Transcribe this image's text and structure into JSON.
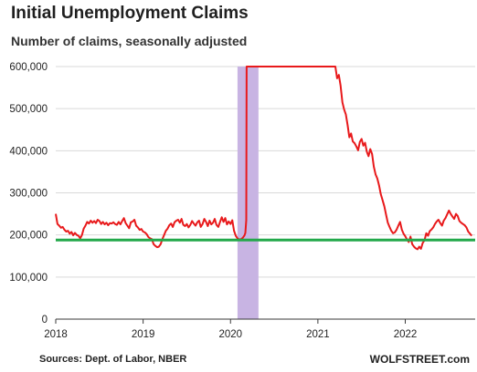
{
  "title": "Initial Unemployment Claims",
  "subtitle": "Number of claims, seasonally adjusted",
  "source": "Sources: Dept. of Labor, NBER",
  "brand": "WOLFSTREET.com",
  "colors": {
    "series": "#e8191b",
    "reference_line": "#22a84a",
    "recession": "#c8b4e3",
    "grid": "#d9d9d9",
    "axis": "#3a3a3a"
  },
  "chart_data": {
    "type": "line",
    "xlim": [
      2018.0,
      2022.8
    ],
    "ylim": [
      0,
      600000
    ],
    "grid": "horizontal",
    "yticks": [
      0,
      100000,
      200000,
      300000,
      400000,
      500000,
      600000
    ],
    "ytick_labels": [
      "0",
      "100,000",
      "200,000",
      "300,000",
      "400,000",
      "500,000",
      "600,000"
    ],
    "xticks": [
      2018,
      2019,
      2020,
      2021,
      2022
    ],
    "xtick_labels": [
      "2018",
      "2019",
      "2020",
      "2021",
      "2022"
    ],
    "recession_band": [
      2020.08,
      2020.32
    ],
    "reference_line": 188000,
    "series": [
      {
        "points": [
          [
            2018.0,
            250000
          ],
          [
            2018.02,
            226000
          ],
          [
            2018.04,
            222000
          ],
          [
            2018.06,
            217000
          ],
          [
            2018.08,
            219000
          ],
          [
            2018.1,
            212000
          ],
          [
            2018.12,
            208000
          ],
          [
            2018.14,
            210000
          ],
          [
            2018.16,
            203000
          ],
          [
            2018.18,
            207000
          ],
          [
            2018.2,
            199000
          ],
          [
            2018.22,
            205000
          ],
          [
            2018.24,
            200000
          ],
          [
            2018.26,
            198000
          ],
          [
            2018.28,
            192000
          ],
          [
            2018.3,
            200000
          ],
          [
            2018.32,
            215000
          ],
          [
            2018.34,
            222000
          ],
          [
            2018.36,
            231000
          ],
          [
            2018.38,
            227000
          ],
          [
            2018.4,
            234000
          ],
          [
            2018.42,
            229000
          ],
          [
            2018.44,
            233000
          ],
          [
            2018.46,
            228000
          ],
          [
            2018.48,
            236000
          ],
          [
            2018.5,
            233000
          ],
          [
            2018.52,
            226000
          ],
          [
            2018.54,
            231000
          ],
          [
            2018.56,
            225000
          ],
          [
            2018.58,
            229000
          ],
          [
            2018.6,
            223000
          ],
          [
            2018.62,
            228000
          ],
          [
            2018.64,
            227000
          ],
          [
            2018.66,
            230000
          ],
          [
            2018.68,
            226000
          ],
          [
            2018.7,
            224000
          ],
          [
            2018.72,
            231000
          ],
          [
            2018.74,
            225000
          ],
          [
            2018.76,
            233000
          ],
          [
            2018.78,
            240000
          ],
          [
            2018.8,
            228000
          ],
          [
            2018.82,
            222000
          ],
          [
            2018.84,
            216000
          ],
          [
            2018.86,
            230000
          ],
          [
            2018.88,
            232000
          ],
          [
            2018.9,
            236000
          ],
          [
            2018.92,
            222000
          ],
          [
            2018.94,
            218000
          ],
          [
            2018.96,
            212000
          ],
          [
            2018.98,
            214000
          ],
          [
            2019.0,
            208000
          ],
          [
            2019.02,
            206000
          ],
          [
            2019.04,
            202000
          ],
          [
            2019.06,
            195000
          ],
          [
            2019.08,
            192000
          ],
          [
            2019.1,
            190000
          ],
          [
            2019.12,
            178000
          ],
          [
            2019.14,
            174000
          ],
          [
            2019.16,
            171000
          ],
          [
            2019.18,
            172000
          ],
          [
            2019.2,
            178000
          ],
          [
            2019.22,
            190000
          ],
          [
            2019.24,
            200000
          ],
          [
            2019.26,
            210000
          ],
          [
            2019.28,
            215000
          ],
          [
            2019.3,
            223000
          ],
          [
            2019.32,
            227000
          ],
          [
            2019.34,
            219000
          ],
          [
            2019.36,
            230000
          ],
          [
            2019.38,
            234000
          ],
          [
            2019.4,
            236000
          ],
          [
            2019.42,
            229000
          ],
          [
            2019.44,
            238000
          ],
          [
            2019.46,
            224000
          ],
          [
            2019.48,
            221000
          ],
          [
            2019.5,
            226000
          ],
          [
            2019.52,
            218000
          ],
          [
            2019.54,
            224000
          ],
          [
            2019.56,
            233000
          ],
          [
            2019.58,
            227000
          ],
          [
            2019.6,
            222000
          ],
          [
            2019.62,
            230000
          ],
          [
            2019.64,
            234000
          ],
          [
            2019.66,
            219000
          ],
          [
            2019.68,
            226000
          ],
          [
            2019.7,
            238000
          ],
          [
            2019.72,
            231000
          ],
          [
            2019.74,
            221000
          ],
          [
            2019.76,
            234000
          ],
          [
            2019.78,
            225000
          ],
          [
            2019.8,
            229000
          ],
          [
            2019.82,
            238000
          ],
          [
            2019.84,
            224000
          ],
          [
            2019.86,
            219000
          ],
          [
            2019.88,
            231000
          ],
          [
            2019.9,
            242000
          ],
          [
            2019.92,
            231000
          ],
          [
            2019.94,
            240000
          ],
          [
            2019.96,
            225000
          ],
          [
            2019.98,
            232000
          ],
          [
            2020.0,
            226000
          ],
          [
            2020.02,
            235000
          ],
          [
            2020.04,
            210000
          ],
          [
            2020.06,
            198000
          ],
          [
            2020.08,
            192000
          ],
          [
            2020.1,
            189000
          ],
          [
            2020.12,
            190000
          ],
          [
            2020.14,
            193000
          ],
          [
            2020.16,
            199000
          ],
          [
            2020.17,
            205000
          ],
          [
            2020.18,
            235000
          ],
          [
            2020.185,
            600000
          ],
          [
            2021.2,
            600000
          ],
          [
            2021.22,
            572000
          ],
          [
            2021.24,
            580000
          ],
          [
            2021.26,
            555000
          ],
          [
            2021.28,
            515000
          ],
          [
            2021.3,
            498000
          ],
          [
            2021.32,
            486000
          ],
          [
            2021.34,
            461000
          ],
          [
            2021.36,
            432000
          ],
          [
            2021.38,
            441000
          ],
          [
            2021.4,
            422000
          ],
          [
            2021.42,
            418000
          ],
          [
            2021.44,
            410000
          ],
          [
            2021.46,
            401000
          ],
          [
            2021.48,
            421000
          ],
          [
            2021.5,
            428000
          ],
          [
            2021.52,
            412000
          ],
          [
            2021.54,
            419000
          ],
          [
            2021.56,
            398000
          ],
          [
            2021.58,
            387000
          ],
          [
            2021.6,
            404000
          ],
          [
            2021.62,
            392000
          ],
          [
            2021.64,
            362000
          ],
          [
            2021.66,
            344000
          ],
          [
            2021.68,
            334000
          ],
          [
            2021.7,
            318000
          ],
          [
            2021.72,
            297000
          ],
          [
            2021.74,
            283000
          ],
          [
            2021.76,
            268000
          ],
          [
            2021.78,
            248000
          ],
          [
            2021.8,
            229000
          ],
          [
            2021.82,
            219000
          ],
          [
            2021.84,
            210000
          ],
          [
            2021.86,
            204000
          ],
          [
            2021.88,
            206000
          ],
          [
            2021.9,
            212000
          ],
          [
            2021.92,
            222000
          ],
          [
            2021.94,
            231000
          ],
          [
            2021.96,
            213000
          ],
          [
            2021.98,
            203000
          ],
          [
            2022.0,
            197000
          ],
          [
            2022.02,
            189000
          ],
          [
            2022.04,
            183000
          ],
          [
            2022.06,
            196000
          ],
          [
            2022.08,
            178000
          ],
          [
            2022.1,
            172000
          ],
          [
            2022.12,
            168000
          ],
          [
            2022.14,
            166000
          ],
          [
            2022.16,
            172000
          ],
          [
            2022.18,
            167000
          ],
          [
            2022.2,
            181000
          ],
          [
            2022.22,
            187000
          ],
          [
            2022.24,
            204000
          ],
          [
            2022.26,
            198000
          ],
          [
            2022.28,
            209000
          ],
          [
            2022.3,
            213000
          ],
          [
            2022.32,
            218000
          ],
          [
            2022.34,
            226000
          ],
          [
            2022.36,
            232000
          ],
          [
            2022.38,
            236000
          ],
          [
            2022.4,
            228000
          ],
          [
            2022.42,
            222000
          ],
          [
            2022.44,
            234000
          ],
          [
            2022.46,
            240000
          ],
          [
            2022.48,
            249000
          ],
          [
            2022.5,
            258000
          ],
          [
            2022.52,
            250000
          ],
          [
            2022.54,
            244000
          ],
          [
            2022.56,
            238000
          ],
          [
            2022.58,
            250000
          ],
          [
            2022.6,
            245000
          ],
          [
            2022.62,
            233000
          ],
          [
            2022.64,
            229000
          ],
          [
            2022.66,
            226000
          ],
          [
            2022.68,
            223000
          ],
          [
            2022.7,
            218000
          ],
          [
            2022.72,
            208000
          ],
          [
            2022.74,
            203000
          ],
          [
            2022.76,
            198000
          ]
        ]
      }
    ]
  }
}
